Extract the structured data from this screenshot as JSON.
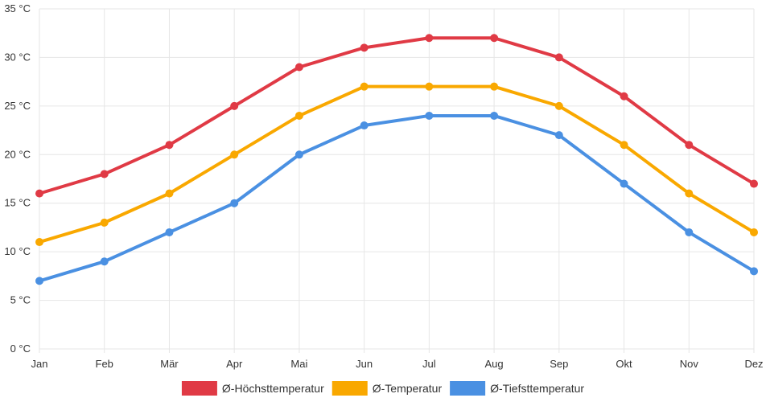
{
  "chart_data": {
    "type": "line",
    "title": "",
    "xlabel": "",
    "ylabel": "",
    "categories": [
      "Jan",
      "Feb",
      "Mär",
      "Apr",
      "Mai",
      "Jun",
      "Jul",
      "Aug",
      "Sep",
      "Okt",
      "Nov",
      "Dez"
    ],
    "ylim": [
      0,
      35
    ],
    "y_ticks": [
      0,
      5,
      10,
      15,
      20,
      25,
      30,
      35
    ],
    "y_tick_labels": [
      "0 °C",
      "5 °C",
      "10 °C",
      "15 °C",
      "20 °C",
      "25 °C",
      "30 °C",
      "35 °C"
    ],
    "grid": true,
    "legend_position": "bottom",
    "series": [
      {
        "name": "Ø-Höchsttemperatur",
        "color": "#e03a45",
        "values": [
          16,
          18,
          21,
          25,
          29,
          31,
          32,
          32,
          30,
          26,
          21,
          17
        ]
      },
      {
        "name": "Ø-Temperatur",
        "color": "#f9a800",
        "values": [
          11,
          13,
          16,
          20,
          24,
          27,
          27,
          27,
          25,
          21,
          16,
          12
        ]
      },
      {
        "name": "Ø-Tiefsttemperatur",
        "color": "#4a90e2",
        "values": [
          7,
          9,
          12,
          15,
          20,
          23,
          24,
          24,
          22,
          17,
          12,
          8
        ]
      }
    ]
  }
}
